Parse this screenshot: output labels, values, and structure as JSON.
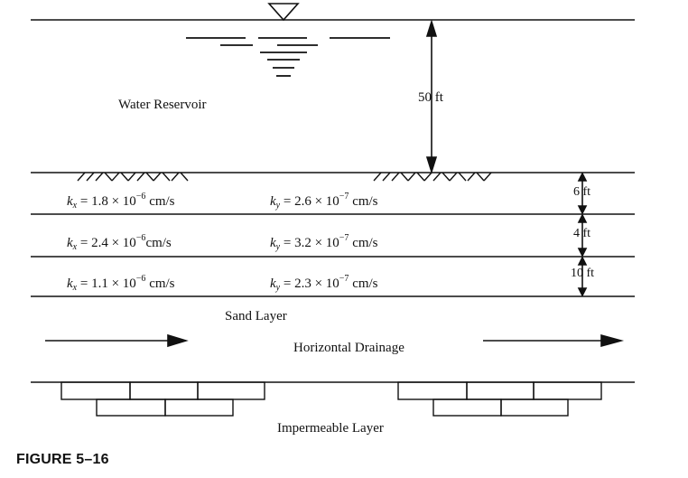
{
  "labels": {
    "water_reservoir": "Water Reservoir",
    "height": "50 ft",
    "sand_layer": "Sand Layer",
    "horizontal_drainage": "Horizontal Drainage",
    "impermeable_layer": "Impermeable Layer",
    "figure_caption": "FIGURE 5–16"
  },
  "layers": [
    {
      "kx": {
        "var": "k",
        "sub": "x",
        "eq": " = 1.8 × 10",
        "exp": "−6",
        "unit": " cm/s"
      },
      "ky": {
        "var": "k",
        "sub": "y",
        "eq": " = 2.6 × 10",
        "exp": "−7",
        "unit": " cm/s"
      },
      "thickness": "6 ft"
    },
    {
      "kx": {
        "var": "k",
        "sub": "x",
        "eq": " = 2.4 × 10",
        "exp": "−6",
        "unit": "cm/s"
      },
      "ky": {
        "var": "k",
        "sub": "y",
        "eq": " = 3.2 × 10",
        "exp": "−7",
        "unit": " cm/s"
      },
      "thickness": "4 ft"
    },
    {
      "kx": {
        "var": "k",
        "sub": "x",
        "eq": " = 1.1 × 10",
        "exp": "−6",
        "unit": " cm/s"
      },
      "ky": {
        "var": "k",
        "sub": "y",
        "eq": " = 2.3 × 10",
        "exp": "−7",
        "unit": " cm/s"
      },
      "thickness": "10 ft"
    }
  ]
}
